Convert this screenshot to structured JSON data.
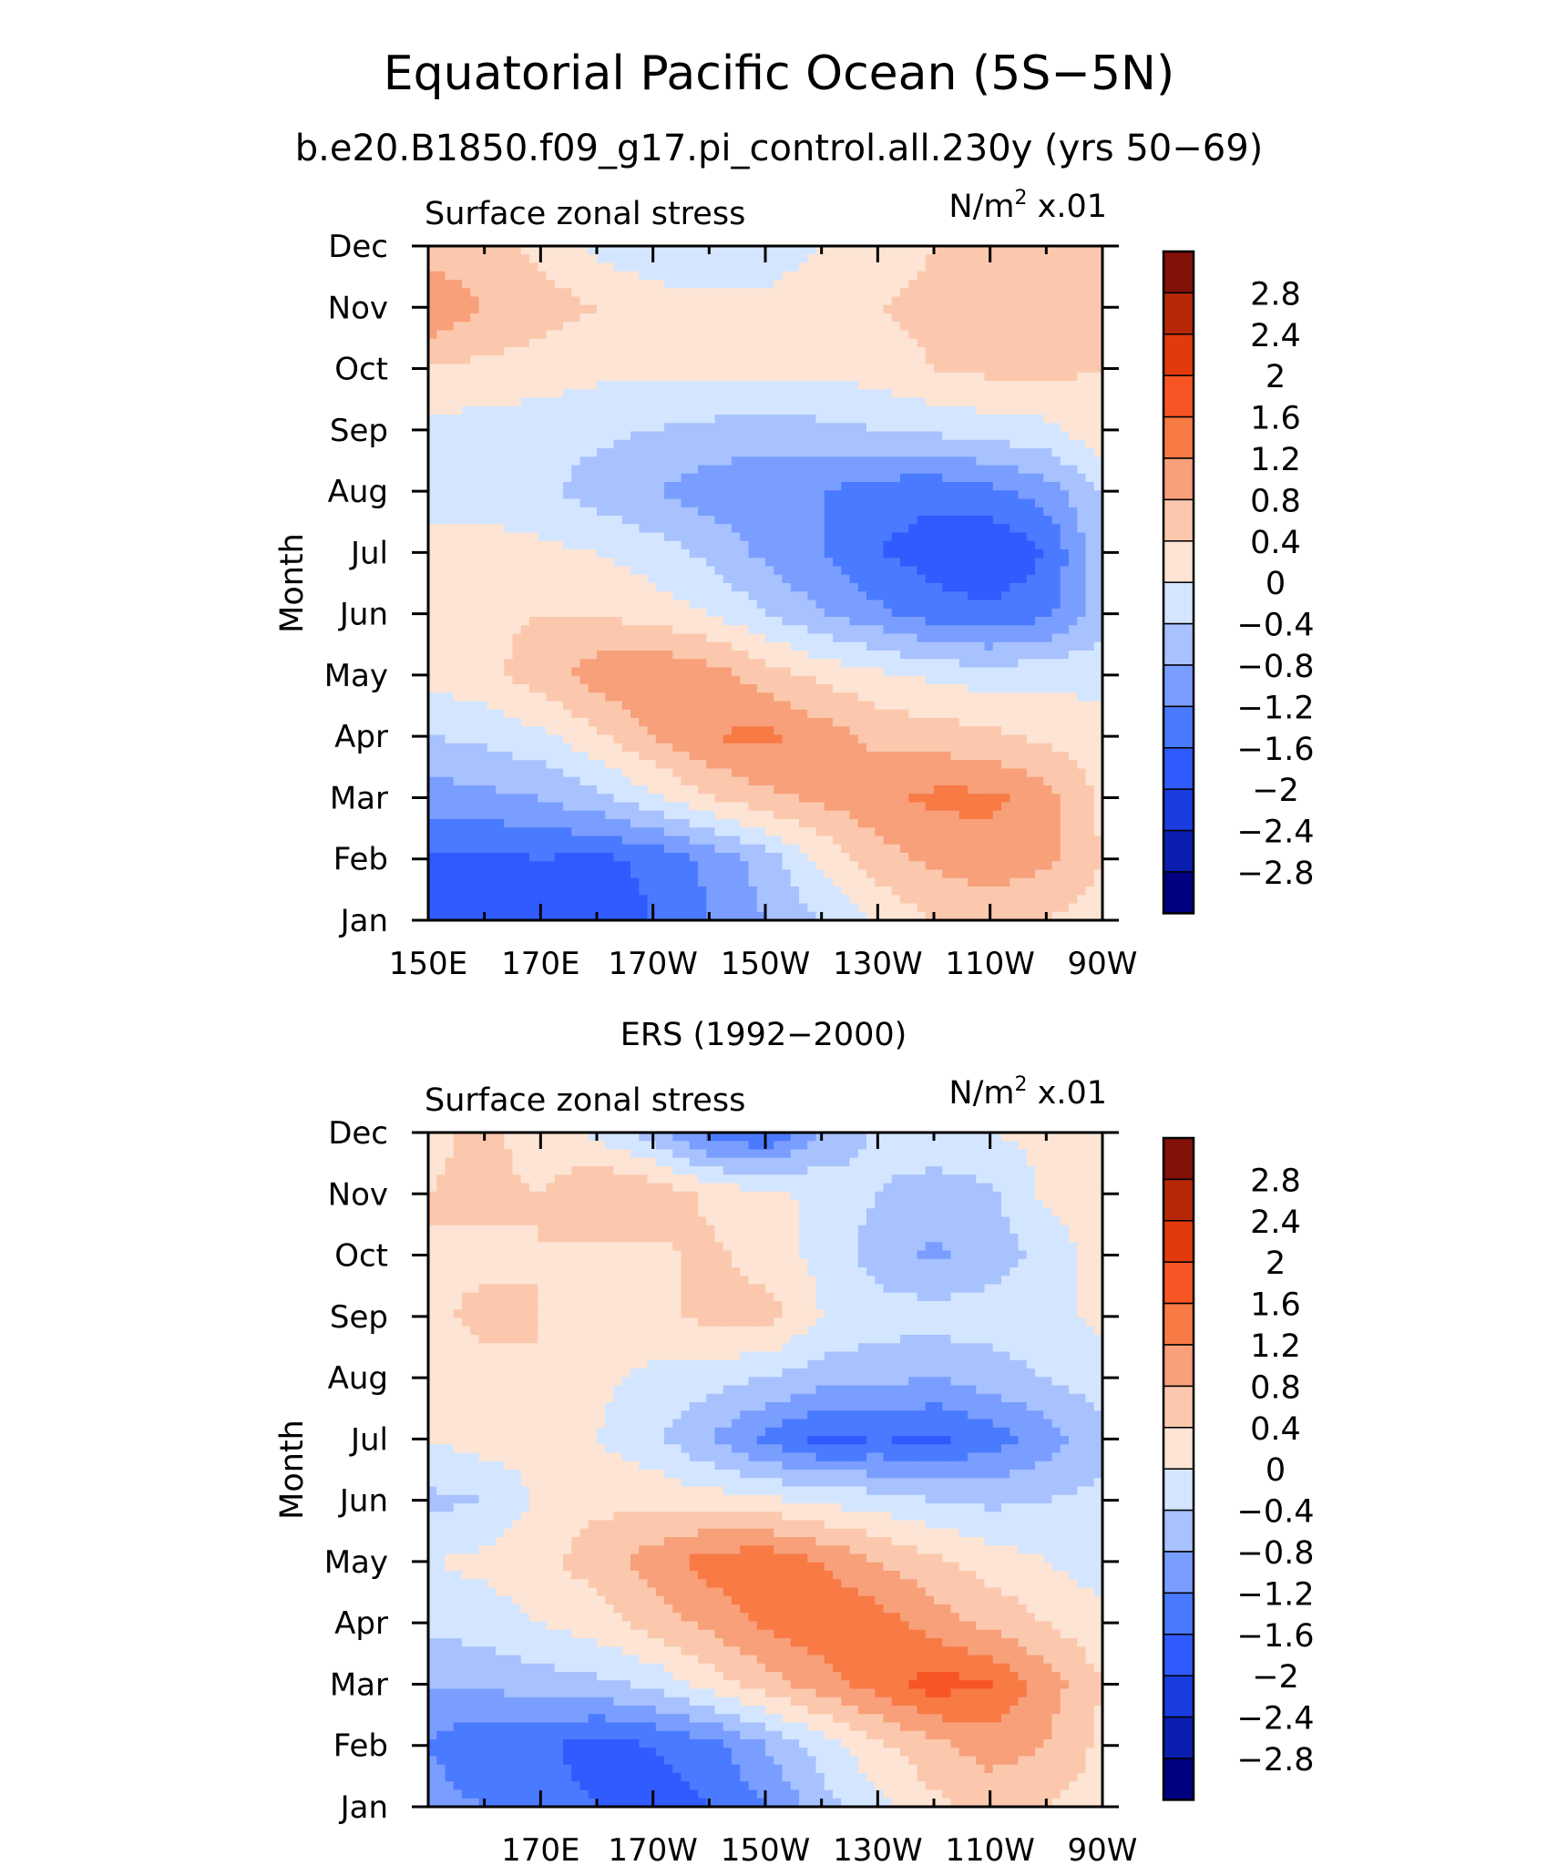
{
  "figure": {
    "title": "Equatorial Pacific Ocean (5S−5N)",
    "subtitle": "b.e20.B1850.f09_g17.pi_control.all.230y (yrs 50−69)"
  },
  "colors": {
    "levels": [
      "#000080",
      "#0a1fb0",
      "#1a3ce0",
      "#2f5bff",
      "#4a7aff",
      "#7a9eff",
      "#a8c2ff",
      "#d4e6ff",
      "#fde4d4",
      "#fbc8ad",
      "#f8a07a",
      "#f87a45",
      "#f85525",
      "#e13a0c",
      "#b62708",
      "#821109"
    ],
    "axis": "#000000"
  },
  "chart_data": [
    {
      "type": "heatmap",
      "panel_title": "",
      "left_label": "Surface zonal stress",
      "units": "N/m",
      "units_sup": "2",
      "units_scale": " x.01",
      "ylabel": "Month",
      "xlim": [
        150,
        270
      ],
      "xticks": [
        150,
        170,
        190,
        210,
        230,
        250,
        270
      ],
      "xtick_labels": [
        "150E",
        "170E",
        "170W",
        "150W",
        "130W",
        "110W",
        "90W"
      ],
      "yticks": [
        "Jan",
        "Feb",
        "Mar",
        "Apr",
        "May",
        "Jun",
        "Jul",
        "Aug",
        "Sep",
        "Oct",
        "Nov",
        "Dec"
      ],
      "levels": [
        -2.8,
        -2.4,
        -2,
        -1.6,
        -1.2,
        -0.8,
        -0.4,
        0,
        0.4,
        0.8,
        1.2,
        1.6,
        2,
        2.4,
        2.8
      ],
      "colorbar_labels": [
        "2.8",
        "2.4",
        "2",
        "1.6",
        "1.2",
        "0.8",
        "0.4",
        "0",
        "−0.4",
        "−0.8",
        "−1.2",
        "−1.6",
        "−2",
        "−2.4",
        "−2.8"
      ],
      "lon": [
        150,
        160,
        170,
        180,
        190,
        200,
        210,
        220,
        230,
        240,
        250,
        260,
        270
      ],
      "z": [
        [
          -1.6,
          -1.8,
          -1.9,
          -1.8,
          -1.6,
          -1.2,
          -0.8,
          -0.4,
          0.1,
          0.4,
          0.6,
          0.4,
          0.2
        ],
        [
          -1.7,
          -1.7,
          -1.6,
          -1.7,
          -1.5,
          -1.1,
          -0.6,
          0.1,
          0.6,
          0.9,
          1.0,
          0.9,
          0.4
        ],
        [
          -1.0,
          -0.9,
          -0.8,
          -0.5,
          -0.1,
          0.4,
          0.7,
          0.9,
          1.1,
          1.3,
          1.3,
          1.0,
          0.3
        ],
        [
          -0.4,
          -0.3,
          -0.1,
          0.3,
          0.8,
          1.2,
          1.3,
          1.0,
          0.7,
          0.6,
          0.5,
          0.3,
          0.1
        ],
        [
          0.1,
          0.3,
          0.6,
          1.0,
          1.2,
          1.0,
          0.6,
          0.3,
          0.1,
          -0.1,
          -0.2,
          -0.1,
          -0.1
        ],
        [
          0.2,
          0.3,
          0.4,
          0.4,
          0.2,
          0.0,
          -0.4,
          -0.8,
          -1.1,
          -1.4,
          -1.5,
          -1.3,
          -0.6
        ],
        [
          0.1,
          0.2,
          0.1,
          0.0,
          -0.2,
          -0.5,
          -0.9,
          -1.2,
          -1.6,
          -1.8,
          -2.0,
          -1.6,
          -0.5
        ],
        [
          -0.1,
          -0.2,
          -0.3,
          -0.6,
          -0.8,
          -1.0,
          -1.1,
          -1.2,
          -1.4,
          -1.5,
          -1.3,
          -1.0,
          -0.4
        ],
        [
          -0.1,
          -0.2,
          -0.2,
          -0.3,
          -0.4,
          -0.5,
          -0.6,
          -0.5,
          -0.4,
          -0.3,
          -0.2,
          -0.1,
          0.3
        ],
        [
          0.4,
          0.3,
          0.2,
          0.1,
          0.1,
          0.1,
          0.1,
          0.1,
          0.2,
          0.4,
          0.5,
          0.5,
          0.4
        ],
        [
          1.2,
          0.8,
          0.6,
          0.4,
          0.2,
          0.1,
          0.1,
          0.2,
          0.4,
          0.5,
          0.6,
          0.6,
          0.5
        ],
        [
          0.6,
          0.5,
          0.3,
          -0.1,
          -0.3,
          -0.3,
          -0.2,
          0.0,
          0.2,
          0.4,
          0.5,
          0.5,
          0.5
        ]
      ]
    },
    {
      "type": "heatmap",
      "panel_title": "ERS (1992−2000)",
      "left_label": "Surface zonal stress",
      "units": "N/m",
      "units_sup": "2",
      "units_scale": " x.01",
      "ylabel": "Month",
      "xlim": [
        150,
        270
      ],
      "xticks": [
        170,
        190,
        210,
        230,
        250,
        270
      ],
      "xtick_labels": [
        "170E",
        "170W",
        "150W",
        "130W",
        "110W",
        "90W"
      ],
      "yticks": [
        "Jan",
        "Feb",
        "Mar",
        "Apr",
        "May",
        "Jun",
        "Jul",
        "Aug",
        "Sep",
        "Oct",
        "Nov",
        "Dec"
      ],
      "levels": [
        -2.8,
        -2.4,
        -2,
        -1.6,
        -1.2,
        -0.8,
        -0.4,
        0,
        0.4,
        0.8,
        1.2,
        1.6,
        2,
        2.4,
        2.8
      ],
      "colorbar_labels": [
        "2.8",
        "2.4",
        "2",
        "1.6",
        "1.2",
        "0.8",
        "0.4",
        "0",
        "−0.4",
        "−0.8",
        "−1.2",
        "−1.6",
        "−2",
        "−2.4",
        "−2.8"
      ],
      "lon": [
        150,
        160,
        170,
        180,
        190,
        200,
        210,
        220,
        230,
        240,
        250,
        260,
        270
      ],
      "z": [
        [
          -1.0,
          -1.2,
          -1.4,
          -1.6,
          -1.8,
          -1.6,
          -1.2,
          -0.6,
          -0.1,
          0.3,
          0.5,
          0.4,
          0.2
        ],
        [
          -1.2,
          -1.6,
          -1.5,
          -1.8,
          -1.6,
          -1.4,
          -0.8,
          -0.2,
          0.3,
          0.7,
          1.0,
          0.8,
          0.3
        ],
        [
          -0.8,
          -0.7,
          -0.6,
          -0.5,
          -0.3,
          0.2,
          0.6,
          1.0,
          1.4,
          1.8,
          1.6,
          1.0,
          0.4
        ],
        [
          -0.3,
          -0.2,
          0.0,
          0.2,
          0.6,
          0.9,
          1.3,
          1.5,
          1.4,
          1.0,
          0.7,
          0.4,
          0.1
        ],
        [
          0.0,
          0.1,
          0.3,
          0.6,
          1.0,
          1.4,
          1.5,
          1.2,
          0.8,
          0.5,
          0.2,
          0.0,
          -0.2
        ],
        [
          -0.5,
          -0.4,
          0.1,
          0.3,
          0.3,
          0.2,
          0.1,
          -0.1,
          -0.2,
          -0.4,
          -0.5,
          -0.4,
          -0.3
        ],
        [
          0.0,
          0.2,
          0.1,
          0.0,
          -0.3,
          -0.8,
          -1.3,
          -1.7,
          -1.6,
          -1.7,
          -1.4,
          -1.0,
          -0.5
        ],
        [
          0.2,
          0.3,
          0.4,
          0.1,
          -0.1,
          -0.2,
          -0.4,
          -0.6,
          -0.7,
          -0.8,
          -0.6,
          -0.4,
          -0.2
        ],
        [
          0.3,
          0.5,
          0.4,
          0.2,
          0.3,
          0.5,
          0.6,
          0.0,
          -0.2,
          -0.2,
          -0.2,
          -0.1,
          0.1
        ],
        [
          0.4,
          0.3,
          0.4,
          0.3,
          0.3,
          0.5,
          0.2,
          -0.1,
          -0.6,
          -0.9,
          -0.6,
          -0.3,
          0.2
        ],
        [
          0.4,
          0.5,
          0.4,
          0.8,
          0.7,
          0.3,
          0.1,
          -0.1,
          -0.4,
          -0.6,
          -0.5,
          0.1,
          0.3
        ],
        [
          0.3,
          0.5,
          0.2,
          -0.1,
          -0.6,
          -1.4,
          -1.6,
          -0.8,
          -0.3,
          -0.1,
          0.0,
          0.1,
          0.2
        ]
      ]
    }
  ]
}
